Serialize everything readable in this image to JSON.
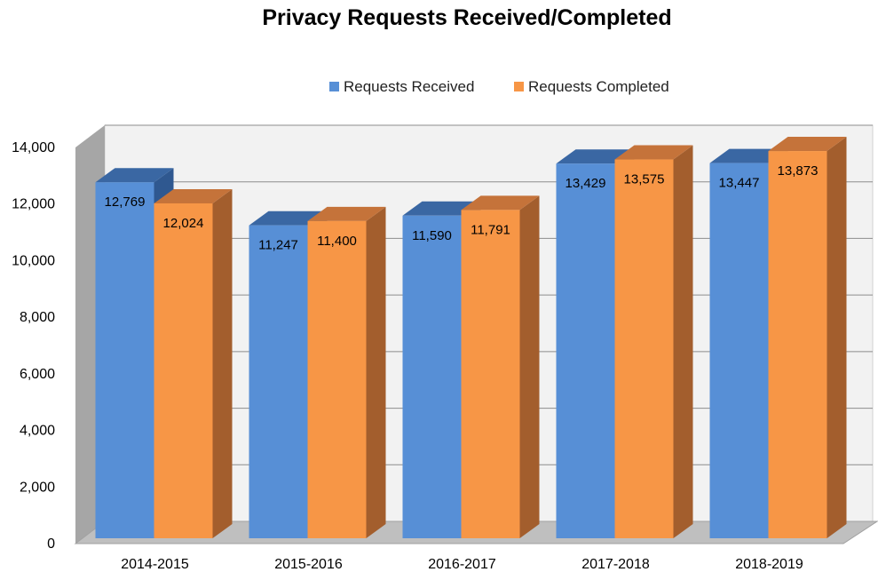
{
  "chart_data": {
    "type": "bar",
    "title": "Privacy Requests Received/Completed",
    "categories": [
      "2014-2015",
      "2015-2016",
      "2016-2017",
      "2017-2018",
      "2018-2019"
    ],
    "series": [
      {
        "name": "Requests Received",
        "values": [
          12769,
          11247,
          11590,
          13429,
          13447
        ],
        "labels": [
          "12,769",
          "11,247",
          "11,590",
          "13,429",
          "13,447"
        ],
        "color": "#578fd6",
        "top_color": "#3a67a3",
        "side_color": "#2f5890"
      },
      {
        "name": "Requests Completed",
        "values": [
          12024,
          11400,
          11791,
          13575,
          13873
        ],
        "labels": [
          "12,024",
          "11,400",
          "11,791",
          "13,575",
          "13,873"
        ],
        "color": "#f79646",
        "top_color": "#c5733a",
        "side_color": "#a35e2d"
      }
    ],
    "ylim": [
      0,
      14000
    ],
    "yticks": [
      0,
      2000,
      4000,
      6000,
      8000,
      10000,
      12000,
      14000
    ],
    "ytick_labels": [
      "0",
      "2,000",
      "4,000",
      "6,000",
      "8,000",
      "10,000",
      "12,000",
      "14,000"
    ],
    "xlabel": "",
    "ylabel": "",
    "grid": true,
    "legend_position": "top"
  }
}
